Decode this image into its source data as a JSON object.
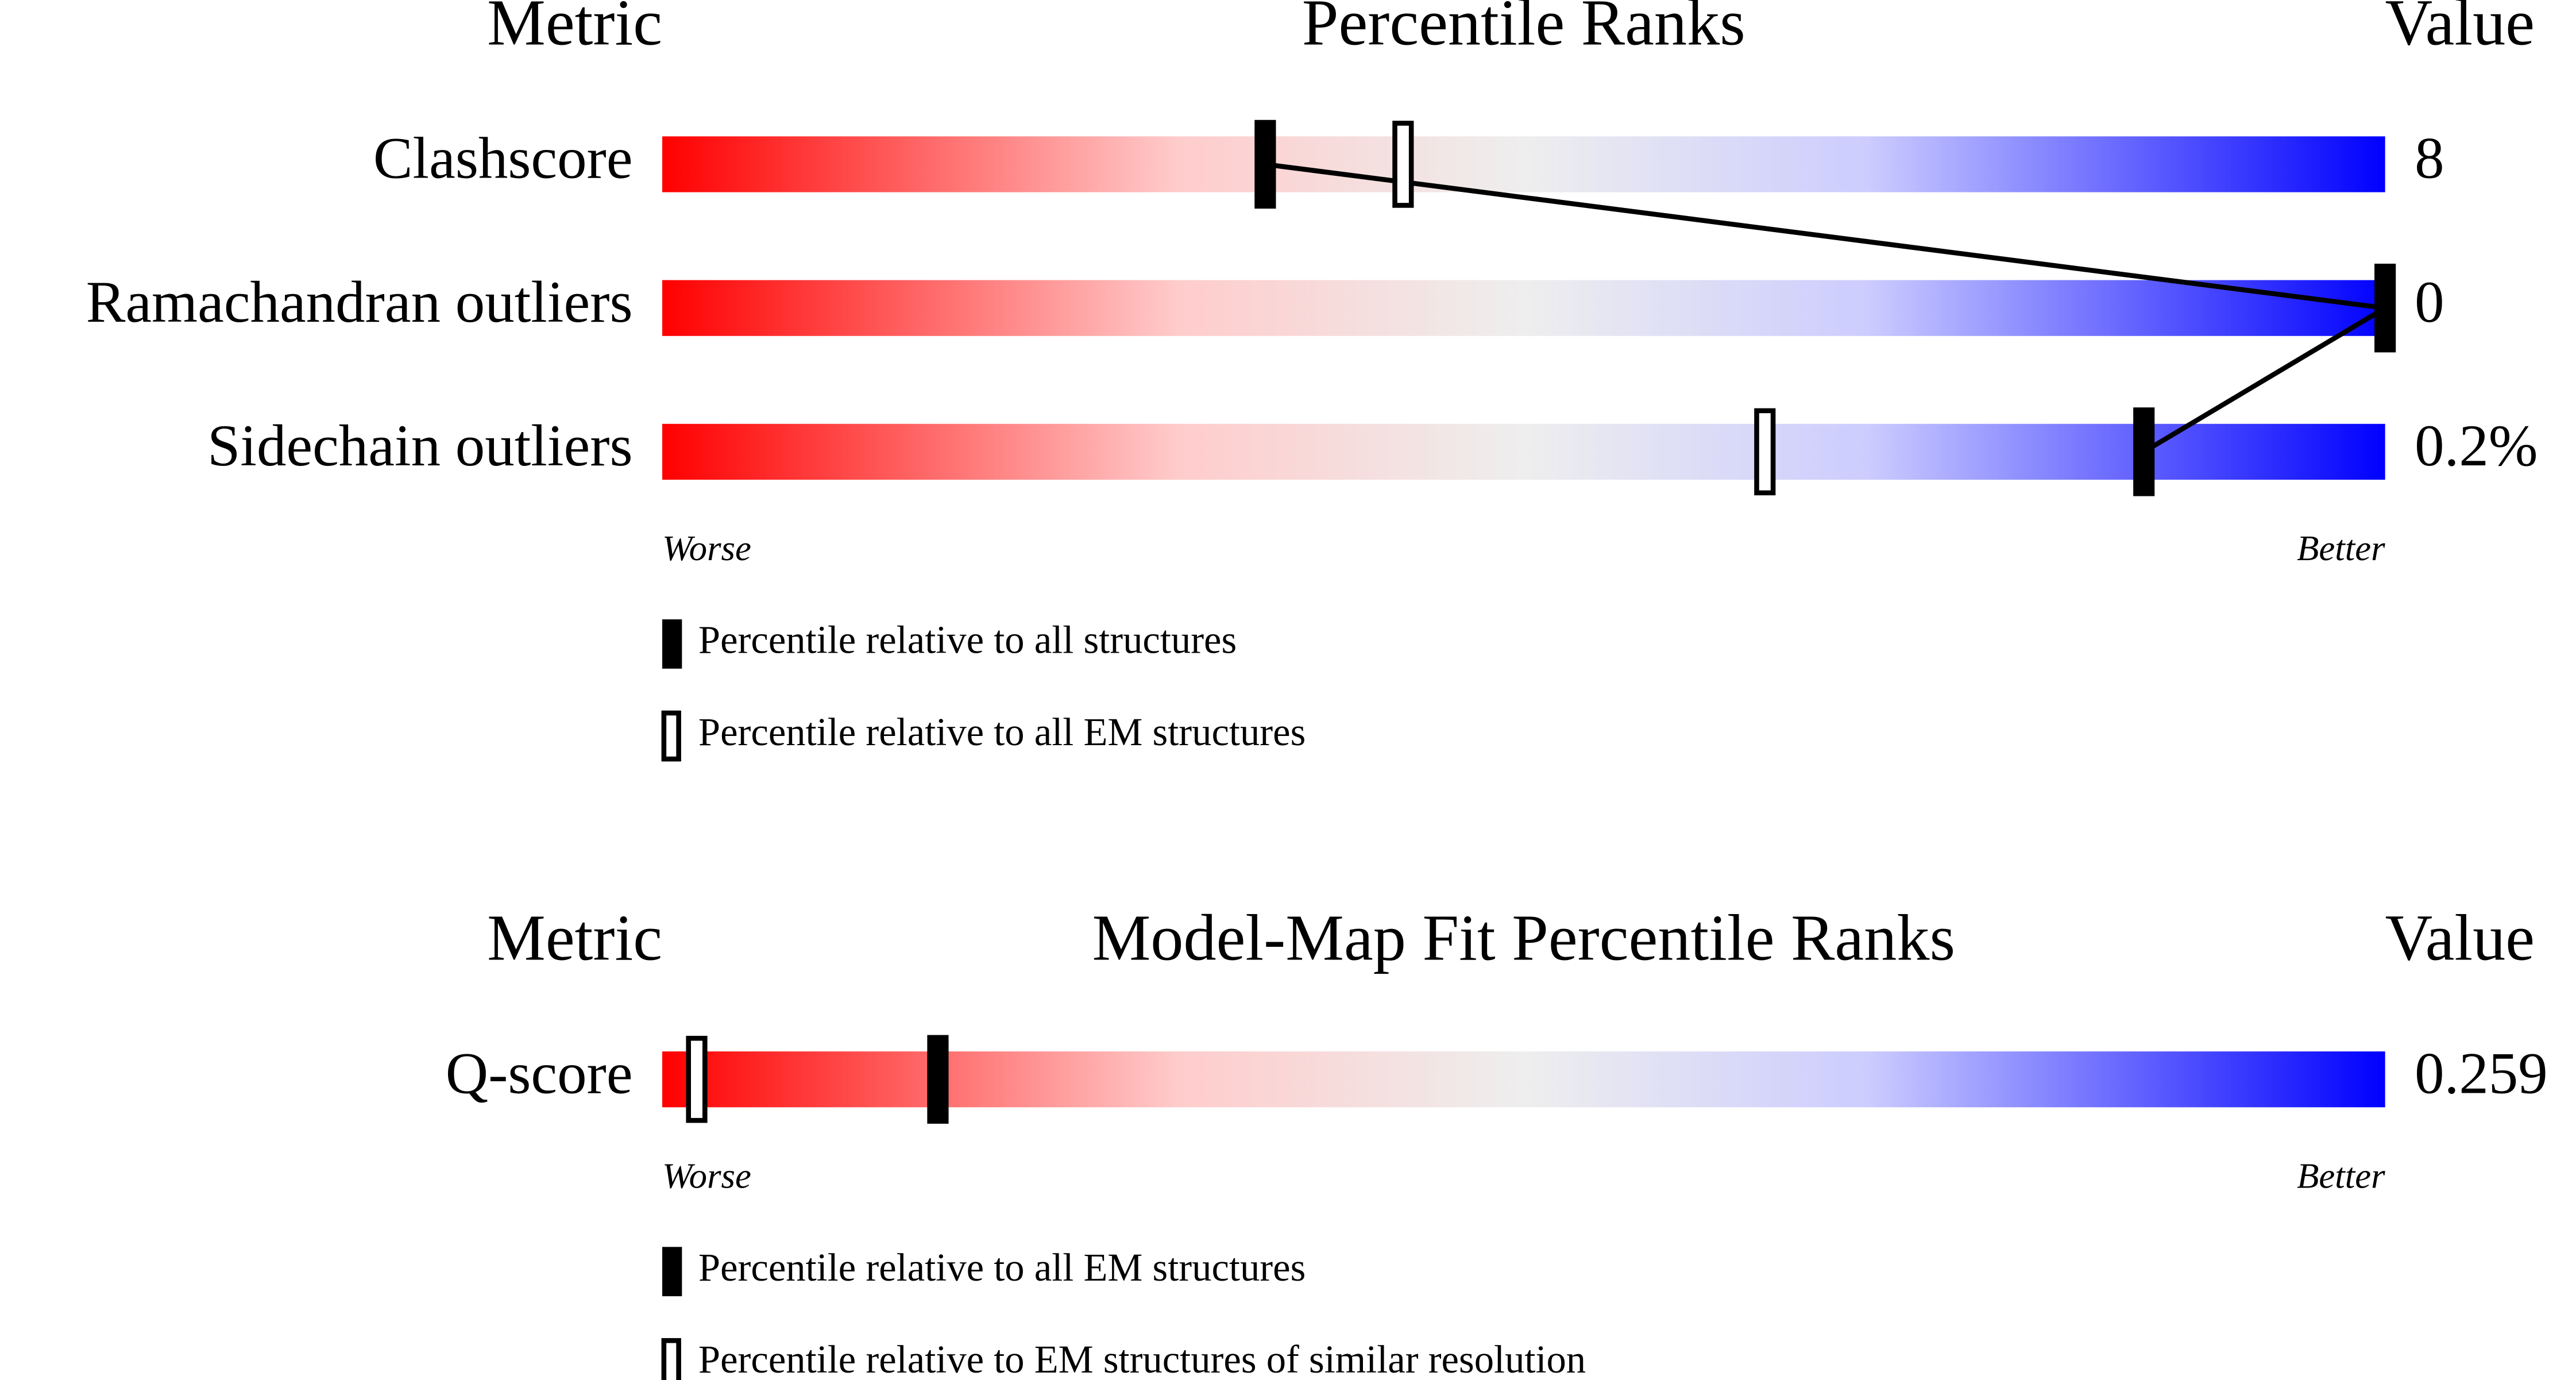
{
  "chart_data": [
    {
      "type": "percentile",
      "metric_header": "Metric",
      "title": "Percentile Ranks",
      "value_header": "Value",
      "categories": [
        "Clashscore",
        "Ramachandran outliers",
        "Sidechain outliers"
      ],
      "metric_values": [
        "8",
        "0",
        "0.2%"
      ],
      "xlim": [
        0,
        100
      ],
      "worse_label": "Worse",
      "better_label": "Better",
      "series": [
        {
          "name": "Percentile relative to all structures",
          "style": "filled",
          "color": "#000000",
          "values": [
            35,
            100,
            86
          ]
        },
        {
          "name": "Percentile relative to all EM structures",
          "style": "hollow",
          "color": "#000000",
          "values": [
            43,
            null,
            64
          ]
        }
      ]
    },
    {
      "type": "percentile",
      "metric_header": "Metric",
      "title": "Model-Map Fit Percentile Ranks",
      "value_header": "Value",
      "categories": [
        "Q-score"
      ],
      "metric_values": [
        "0.259"
      ],
      "xlim": [
        0,
        100
      ],
      "worse_label": "Worse",
      "better_label": "Better",
      "series": [
        {
          "name": "Percentile relative to all EM structures",
          "style": "filled",
          "color": "#000000",
          "values": [
            16
          ]
        },
        {
          "name": "Percentile relative to EM structures of similar resolution",
          "style": "hollow",
          "color": "#000000",
          "values": [
            2
          ]
        }
      ]
    }
  ]
}
